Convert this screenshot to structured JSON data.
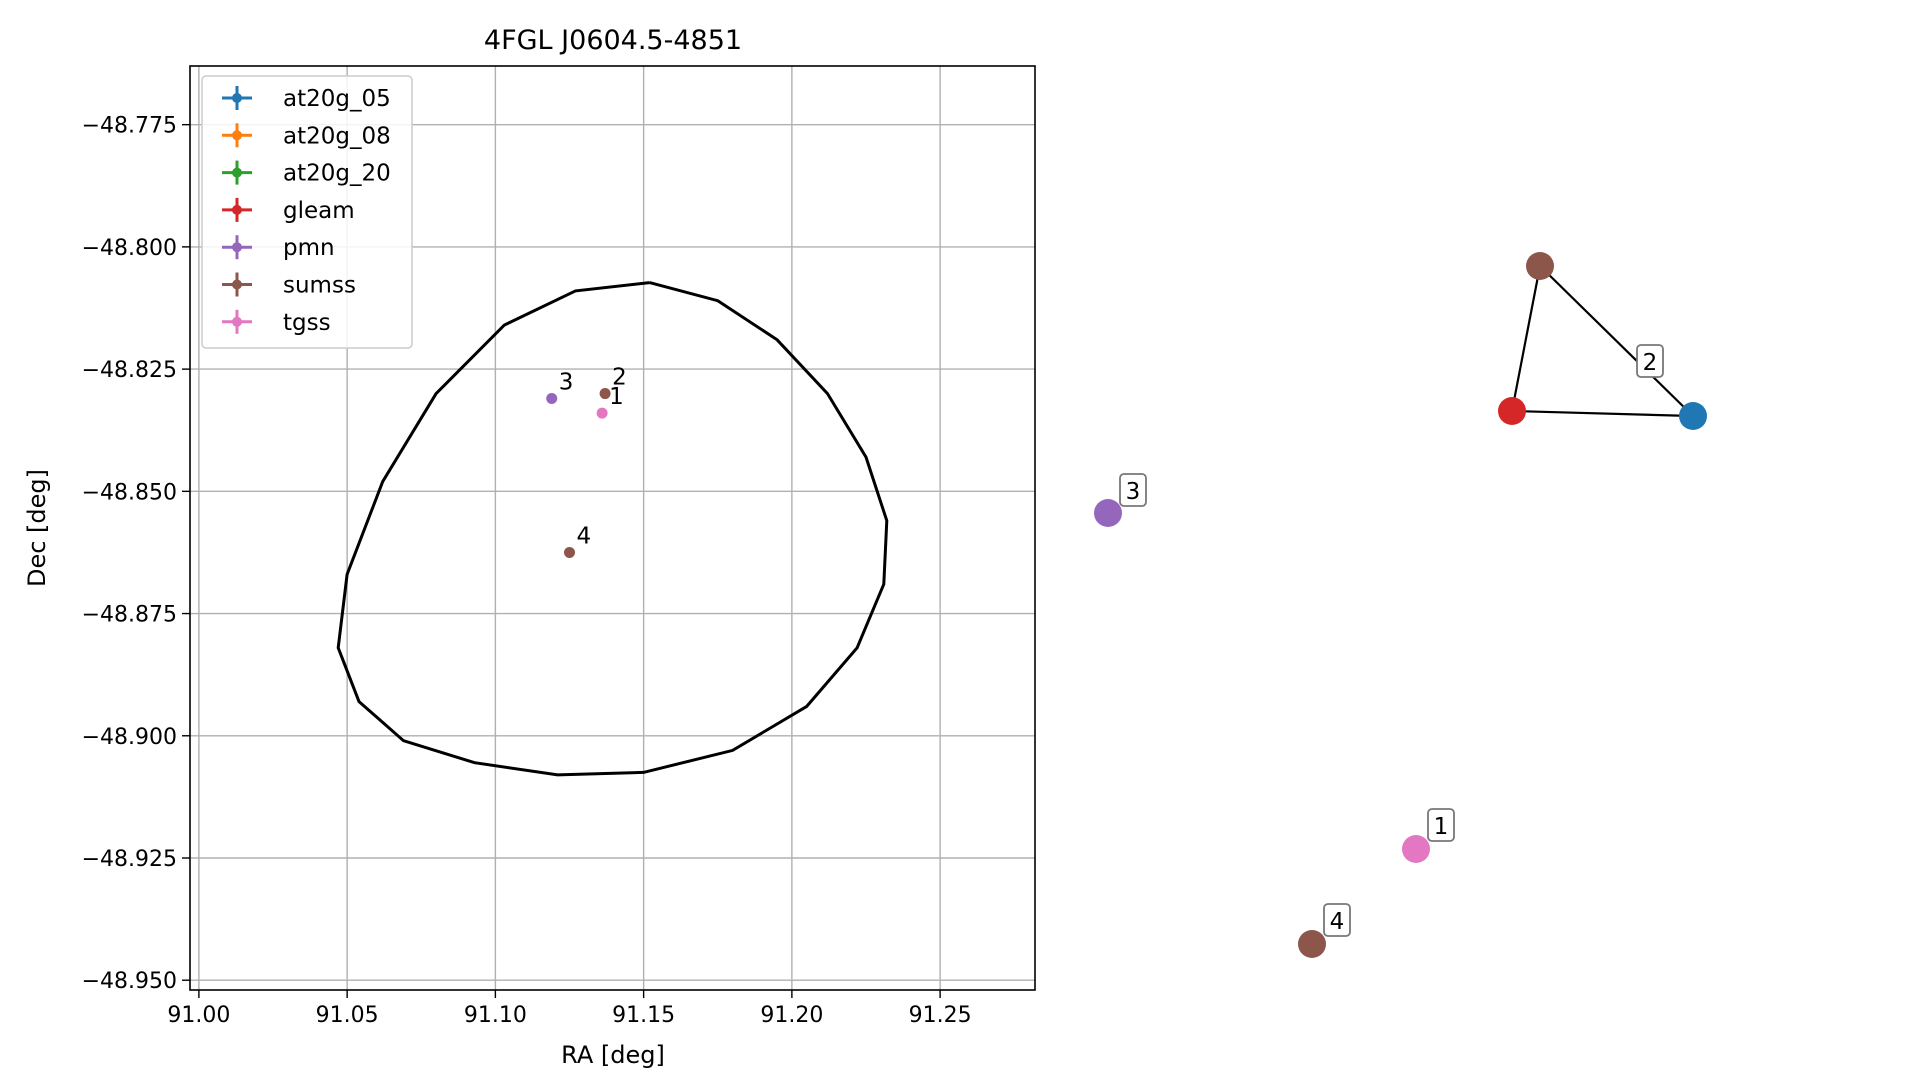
{
  "chart_data": [
    {
      "type": "scatter",
      "title": "4FGL J0604.5-4851",
      "xlabel": "RA [deg]",
      "ylabel": "Dec [deg]",
      "xlim": [
        90.997,
        91.282
      ],
      "ylim": [
        -48.952,
        -48.763
      ],
      "x_ticks": [
        "91.00",
        "91.05",
        "91.10",
        "91.15",
        "91.20",
        "91.25"
      ],
      "x_tick_values": [
        91.0,
        91.05,
        91.1,
        91.15,
        91.2,
        91.25
      ],
      "y_ticks": [
        "−48.775",
        "−48.800",
        "−48.825",
        "−48.850",
        "−48.875",
        "−48.900",
        "−48.925",
        "−48.950"
      ],
      "y_tick_values": [
        -48.775,
        -48.8,
        -48.825,
        -48.85,
        -48.875,
        -48.9,
        -48.925,
        -48.95
      ],
      "grid": true,
      "legend_placement": "upper-left",
      "legend": [
        {
          "label": "at20g_05",
          "color": "#1f77b4"
        },
        {
          "label": "at20g_08",
          "color": "#ff7f0e"
        },
        {
          "label": "at20g_20",
          "color": "#2ca02c"
        },
        {
          "label": "gleam",
          "color": "#d62728"
        },
        {
          "label": "pmn",
          "color": "#9467bd"
        },
        {
          "label": "sumss",
          "color": "#8c564b"
        },
        {
          "label": "tgss",
          "color": "#e377c2"
        }
      ],
      "points": [
        {
          "label": "1",
          "catalog": "tgss",
          "ra": 91.136,
          "dec": -48.834,
          "color": "#e377c2"
        },
        {
          "label": "2",
          "catalog": "sumss",
          "ra": 91.137,
          "dec": -48.83,
          "color": "#8c564b"
        },
        {
          "label": "3",
          "catalog": "pmn",
          "ra": 91.119,
          "dec": -48.831,
          "color": "#9467bd"
        },
        {
          "label": "4",
          "catalog": "sumss",
          "ra": 91.125,
          "dec": -48.8625,
          "color": "#8c564b"
        }
      ],
      "ellipse_ra": [
        91.152,
        91.175,
        91.195,
        91.212,
        91.225,
        91.232,
        91.231,
        91.222,
        91.205,
        91.18,
        91.15,
        91.121,
        91.093,
        91.069,
        91.054,
        91.047,
        91.05,
        91.062,
        91.08,
        91.103,
        91.127,
        91.152
      ],
      "ellipse_dec": [
        -48.8073,
        -48.811,
        -48.819,
        -48.83,
        -48.843,
        -48.856,
        -48.869,
        -48.882,
        -48.894,
        -48.903,
        -48.9075,
        -48.908,
        -48.9055,
        -48.901,
        -48.893,
        -48.882,
        -48.867,
        -48.848,
        -48.83,
        -48.816,
        -48.809,
        -48.8073
      ]
    },
    {
      "type": "network",
      "nodes": [
        {
          "id": "n-sumss-top",
          "color": "#8c564b"
        },
        {
          "id": "n-gleam",
          "color": "#d62728"
        },
        {
          "id": "n-at20g",
          "color": "#1f77b4"
        },
        {
          "id": "n-pmn",
          "color": "#9467bd",
          "label": "3"
        },
        {
          "id": "n-tgss",
          "color": "#e377c2",
          "label": "1"
        },
        {
          "id": "n-sumss-bottom",
          "color": "#8c564b",
          "label": "4"
        }
      ],
      "edges": [
        {
          "from": "n-sumss-top",
          "to": "n-gleam"
        },
        {
          "from": "n-sumss-top",
          "to": "n-at20g"
        },
        {
          "from": "n-gleam",
          "to": "n-at20g"
        }
      ],
      "group_labels": [
        "2"
      ]
    }
  ]
}
